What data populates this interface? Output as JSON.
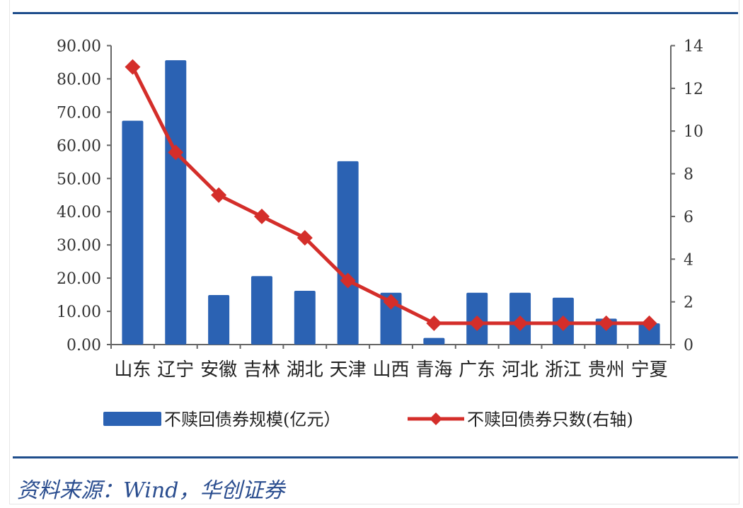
{
  "source": "资料来源：Wind，华创证券",
  "colors": {
    "bar": "#2b62b3",
    "line": "#d42e2a",
    "rule": "#1f4e8c",
    "axis": "#666666",
    "text": "#333333"
  },
  "chart_data": {
    "type": "bar+line",
    "title": "",
    "categories": [
      "山东",
      "辽宁",
      "安徽",
      "吉林",
      "湖北",
      "天津",
      "山西",
      "青海",
      "广东",
      "河北",
      "浙江",
      "贵州",
      "宁夏"
    ],
    "series": [
      {
        "name": "不赎回债券规模(亿元）",
        "type": "bar",
        "axis": "left",
        "values": [
          67.4,
          85.6,
          14.9,
          20.6,
          16.2,
          55.2,
          15.6,
          2.0,
          15.6,
          15.6,
          14.1,
          7.8,
          6.4
        ]
      },
      {
        "name": "不赎回债券只数(右轴)",
        "type": "line",
        "axis": "right",
        "marker": "diamond",
        "values": [
          13,
          9,
          7,
          6,
          5,
          3,
          2,
          1,
          1,
          1,
          1,
          1,
          1
        ]
      }
    ],
    "y_left": {
      "ylim": [
        0,
        90
      ],
      "ticks": [
        "0.00",
        "10.00",
        "20.00",
        "30.00",
        "40.00",
        "50.00",
        "60.00",
        "70.00",
        "80.00",
        "90.00"
      ]
    },
    "y_right": {
      "ylim": [
        0,
        14
      ],
      "ticks": [
        "0",
        "2",
        "4",
        "6",
        "8",
        "10",
        "12",
        "14"
      ]
    },
    "legend": {
      "position": "bottom",
      "entries": [
        "不赎回债券规模(亿元）",
        "不赎回债券只数(右轴)"
      ]
    },
    "grid": false,
    "xlabel": "",
    "ylabel": ""
  }
}
